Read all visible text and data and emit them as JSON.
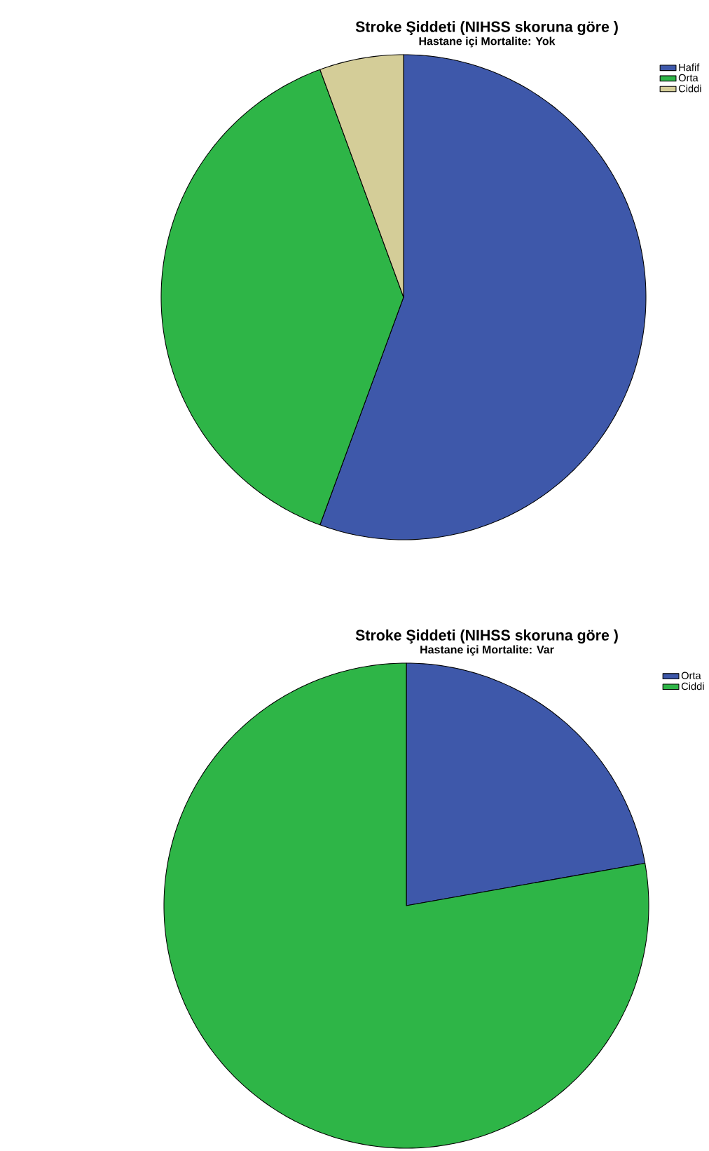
{
  "chart_data": [
    {
      "type": "pie",
      "title": "Stroke Şiddeti (NIHSS skoruna göre )",
      "subtitle": "Hastane içi Mortalite: Yok",
      "categories": [
        "Hafif",
        "Orta",
        "Ciddi"
      ],
      "values": [
        55.6,
        38.8,
        5.6
      ],
      "colors": [
        "#3e58aa",
        "#2eb547",
        "#d4cd98"
      ],
      "legend": "top right"
    },
    {
      "type": "pie",
      "title": "Stroke Şiddeti (NIHSS skoruna göre )",
      "subtitle": "Hastane içi Mortalite: Var",
      "categories": [
        "Orta",
        "Ciddi"
      ],
      "values": [
        22.2,
        77.8
      ],
      "colors": [
        "#3e58aa",
        "#2eb547"
      ],
      "legend": "top right"
    }
  ]
}
